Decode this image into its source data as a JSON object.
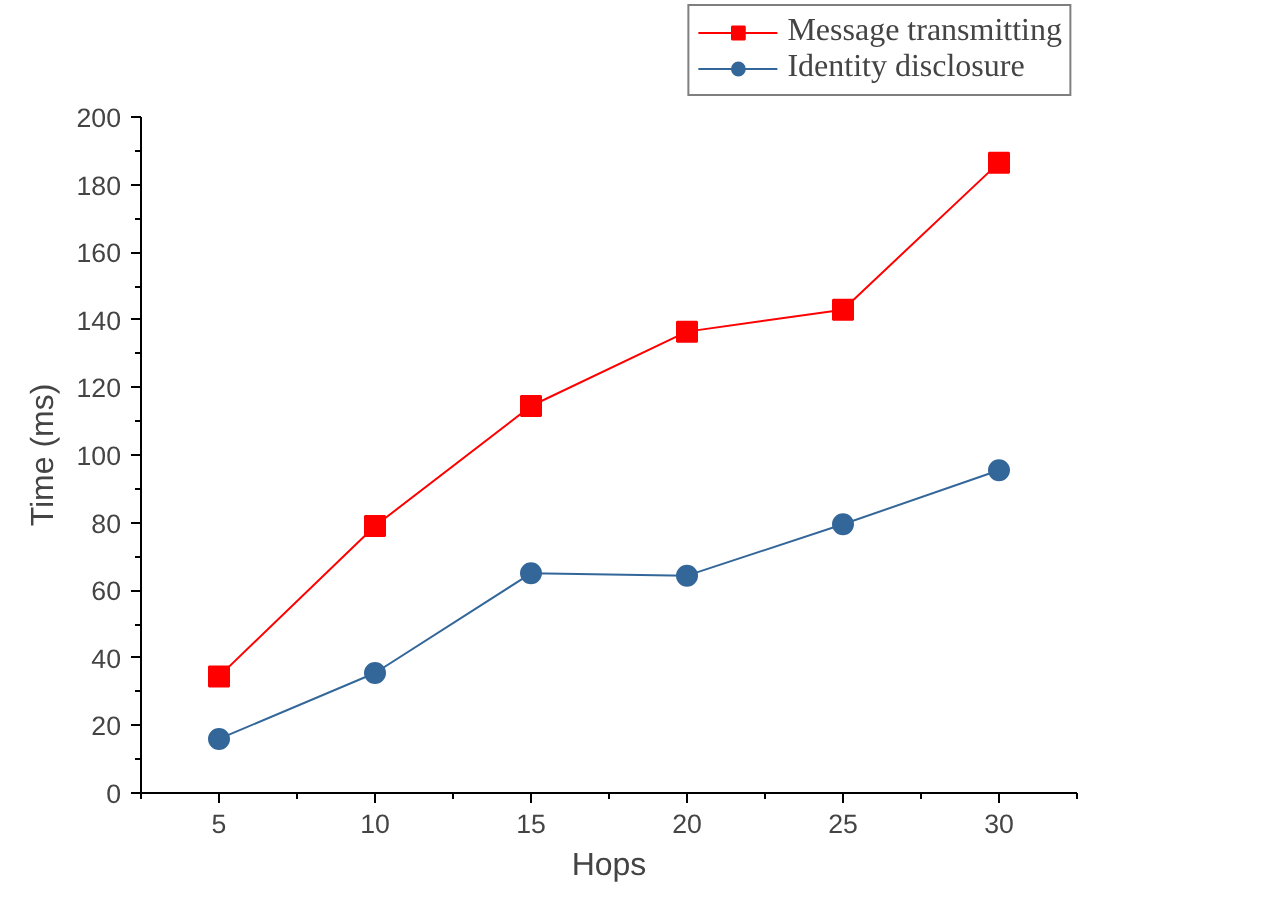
{
  "chart_data": {
    "type": "line",
    "xlabel": "Hops",
    "ylabel": "Time (ms)",
    "x": [
      5,
      10,
      15,
      20,
      25,
      30
    ],
    "xlim": [
      2.5,
      32.5
    ],
    "xticks": [
      5,
      10,
      15,
      20,
      25,
      30
    ],
    "ylim": [
      0,
      200
    ],
    "yticks": [
      0,
      20,
      40,
      60,
      80,
      100,
      120,
      140,
      160,
      180,
      200
    ],
    "grid": false,
    "legend": "top right",
    "series": [
      {
        "name": "Message transmitting",
        "color": "#ff0000",
        "marker": "square",
        "values": [
          34.5,
          79,
          114.5,
          136.5,
          143,
          186.5
        ]
      },
      {
        "name": "Identity disclosure",
        "color": "#336699",
        "marker": "circle",
        "values": [
          16,
          35.5,
          65,
          64.3,
          79.5,
          95.5
        ]
      }
    ]
  }
}
